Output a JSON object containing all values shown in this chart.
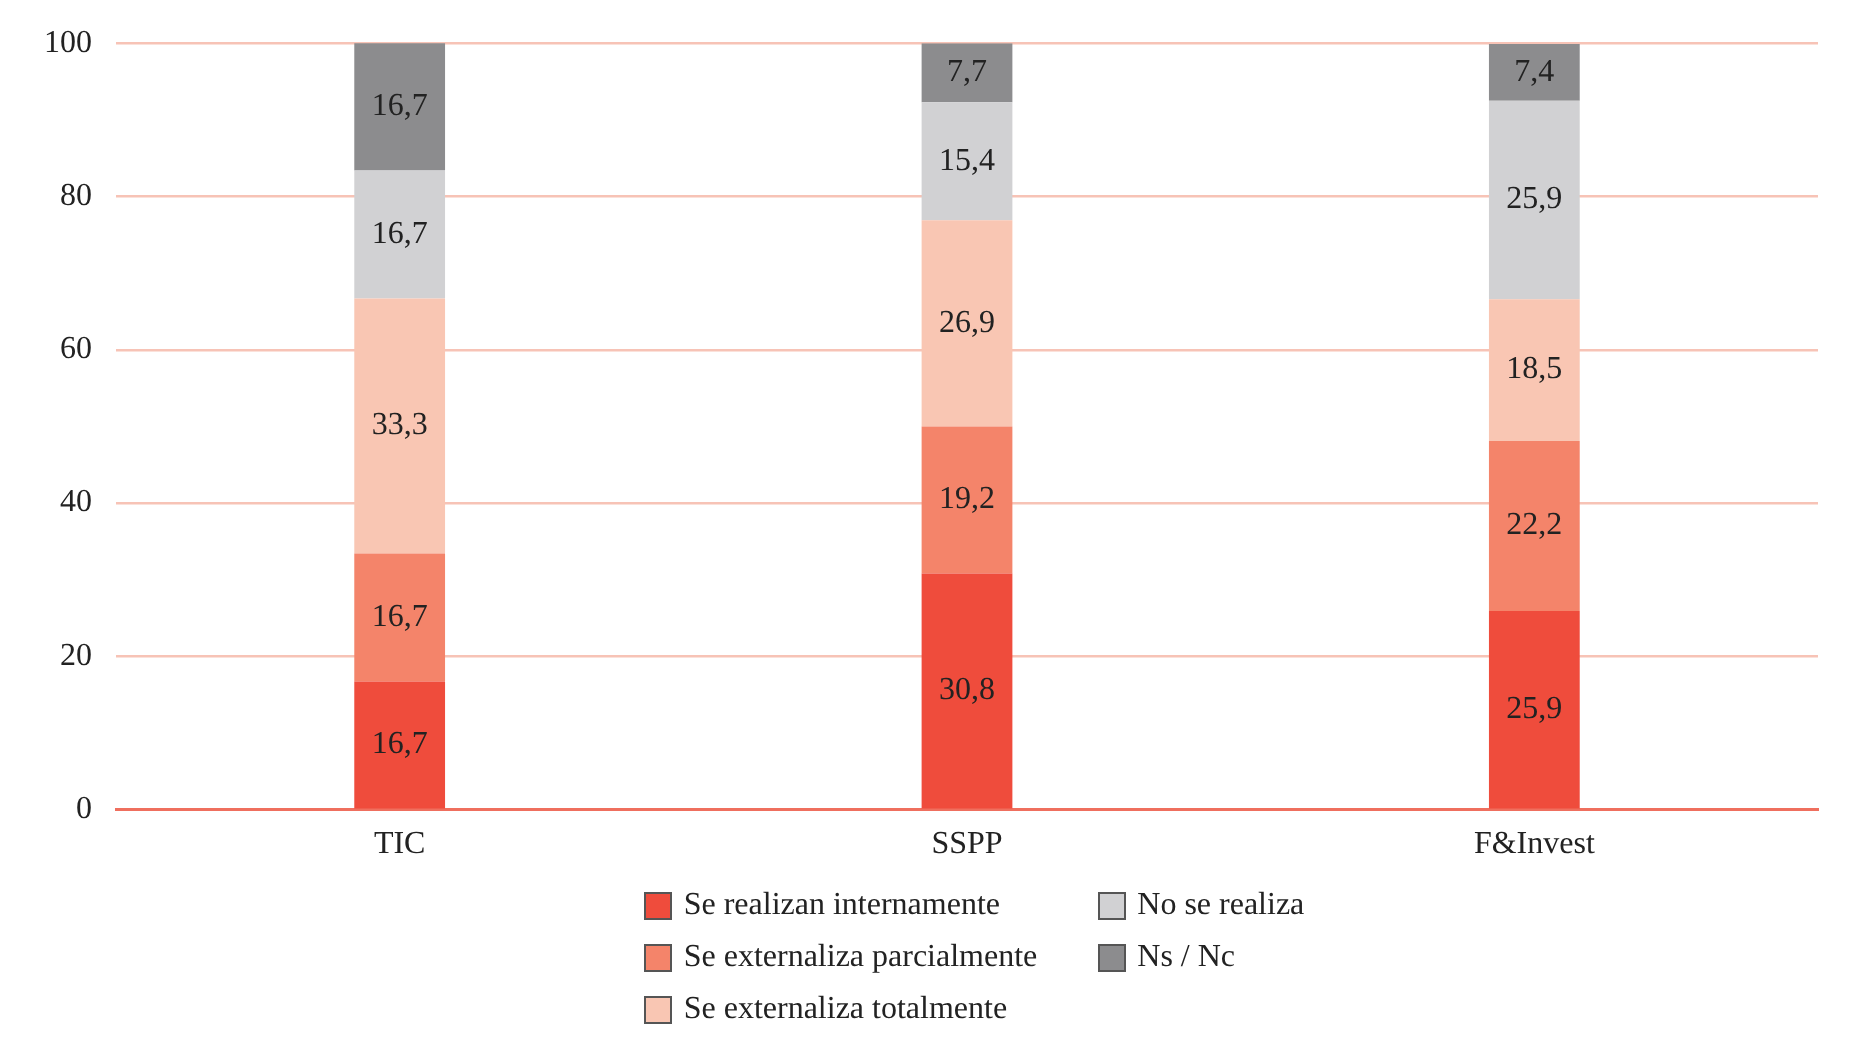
{
  "chart_data": {
    "type": "bar",
    "stacked": true,
    "categories": [
      "TIC",
      "SSPP",
      "F&Invest"
    ],
    "series": [
      {
        "name": "Se realizan internamente",
        "color": "#ef4c3c",
        "values": [
          16.7,
          30.8,
          25.9
        ],
        "value_labels": [
          "16,7",
          "30,8",
          "25,9"
        ]
      },
      {
        "name": "Se externaliza parcialmente",
        "color": "#f4846a",
        "values": [
          16.7,
          19.2,
          22.2
        ],
        "value_labels": [
          "16,7",
          "19,2",
          "22,2"
        ]
      },
      {
        "name": "Se externaliza totalmente",
        "color": "#f9c6b3",
        "values": [
          33.3,
          26.9,
          18.5
        ],
        "value_labels": [
          "33,3",
          "26,9",
          "18,5"
        ]
      },
      {
        "name": "No se realiza",
        "color": "#d1d1d3",
        "values": [
          16.7,
          15.4,
          25.9
        ],
        "value_labels": [
          "16,7",
          "15,4",
          "25,9"
        ]
      },
      {
        "name": "Ns / Nc",
        "color": "#8c8c8e",
        "values": [
          16.7,
          7.7,
          7.4
        ],
        "value_labels": [
          "16,7",
          "7,7",
          "7,4"
        ]
      }
    ],
    "ylim": [
      0,
      100
    ],
    "yticks": [
      0,
      20,
      40,
      60,
      80,
      100
    ],
    "grid": "y",
    "legend": "bottom"
  }
}
